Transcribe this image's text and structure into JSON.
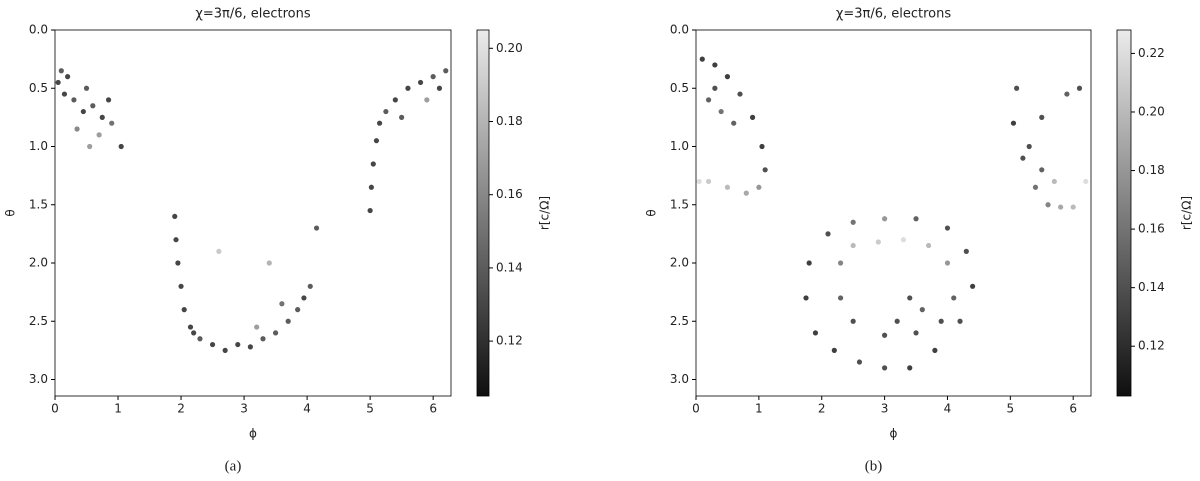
{
  "chart_data": [
    {
      "type": "scatter",
      "title": "χ=3π/6, electrons",
      "xlabel": "ϕ",
      "ylabel": "θ",
      "caption": "(a)",
      "cmap": "gray",
      "x": [
        0.05,
        0.15,
        0.3,
        0.45,
        0.6,
        0.75,
        0.9,
        0.2,
        0.5,
        0.7,
        0.35,
        0.85,
        0.1,
        0.55,
        1.05,
        1.9,
        1.92,
        1.95,
        2.0,
        2.05,
        2.15,
        2.3,
        2.5,
        2.7,
        2.9,
        3.1,
        3.3,
        3.5,
        3.7,
        3.85,
        3.95,
        4.05,
        3.6,
        3.2,
        2.6,
        2.2,
        4.15,
        3.4,
        5.0,
        5.02,
        5.05,
        5.1,
        5.15,
        5.25,
        5.4,
        5.6,
        5.8,
        6.0,
        6.2,
        5.5,
        5.9,
        6.1
      ],
      "y": [
        0.45,
        0.55,
        0.6,
        0.7,
        0.65,
        0.75,
        0.8,
        0.4,
        0.5,
        0.9,
        0.85,
        0.6,
        0.35,
        1.0,
        1.0,
        1.6,
        1.8,
        2.0,
        2.2,
        2.4,
        2.55,
        2.65,
        2.7,
        2.75,
        2.7,
        2.72,
        2.65,
        2.6,
        2.5,
        2.4,
        2.3,
        2.2,
        2.35,
        2.55,
        1.9,
        2.6,
        1.7,
        2.0,
        1.55,
        1.35,
        1.15,
        0.95,
        0.8,
        0.7,
        0.6,
        0.5,
        0.45,
        0.4,
        0.35,
        0.75,
        0.6,
        0.5
      ],
      "c": [
        0.13,
        0.13,
        0.14,
        0.13,
        0.14,
        0.13,
        0.15,
        0.13,
        0.14,
        0.17,
        0.16,
        0.13,
        0.14,
        0.17,
        0.13,
        0.13,
        0.13,
        0.13,
        0.13,
        0.13,
        0.13,
        0.14,
        0.13,
        0.13,
        0.13,
        0.13,
        0.14,
        0.14,
        0.14,
        0.14,
        0.13,
        0.14,
        0.15,
        0.17,
        0.19,
        0.13,
        0.14,
        0.18,
        0.13,
        0.13,
        0.13,
        0.13,
        0.13,
        0.14,
        0.13,
        0.13,
        0.13,
        0.14,
        0.14,
        0.14,
        0.17,
        0.13
      ],
      "xlim": [
        0,
        6.2832
      ],
      "ylim": [
        3.1416,
        0
      ],
      "xticks": [
        0,
        1,
        2,
        3,
        4,
        5,
        6
      ],
      "yticks": [
        {
          "value": 0,
          "label": "0.0"
        },
        0.5,
        {
          "value": 1,
          "label": "1.0"
        },
        1.5,
        {
          "value": 2,
          "label": "2.0"
        },
        2.5,
        {
          "value": 3,
          "label": "3.0"
        }
      ],
      "colorbar": {
        "label": "r[c/Ω]",
        "clim": [
          0.105,
          0.205
        ],
        "ticks": [
          0.12,
          0.14,
          0.16,
          0.18,
          {
            "value": 0.2,
            "label": "0.20"
          }
        ]
      }
    },
    {
      "type": "scatter",
      "title": "χ=3π/6, electrons",
      "xlabel": "ϕ",
      "ylabel": "θ",
      "caption": "(b)",
      "cmap": "gray",
      "x": [
        0.1,
        0.3,
        0.5,
        0.7,
        0.9,
        1.05,
        1.1,
        1.0,
        0.8,
        0.5,
        0.2,
        0.05,
        0.2,
        0.4,
        0.3,
        0.6,
        5.1,
        5.05,
        5.2,
        5.4,
        5.6,
        5.8,
        6.0,
        6.2,
        5.5,
        5.3,
        5.5,
        5.9,
        6.1,
        5.7,
        1.8,
        1.75,
        1.9,
        2.2,
        2.6,
        3.0,
        3.4,
        3.8,
        4.2,
        4.4,
        4.3,
        4.0,
        3.5,
        3.0,
        2.5,
        2.1,
        2.3,
        2.5,
        2.9,
        3.3,
        3.7,
        4.0,
        4.1,
        3.9,
        3.5,
        3.0,
        2.5,
        2.3,
        3.4,
        3.6,
        3.2
      ],
      "y": [
        0.25,
        0.3,
        0.4,
        0.55,
        0.75,
        1.0,
        1.2,
        1.35,
        1.4,
        1.35,
        1.3,
        1.3,
        0.6,
        0.7,
        0.5,
        0.8,
        0.5,
        0.8,
        1.1,
        1.35,
        1.5,
        1.52,
        1.52,
        1.3,
        1.2,
        1.0,
        0.75,
        0.55,
        0.5,
        1.3,
        2.0,
        2.3,
        2.6,
        2.75,
        2.85,
        2.9,
        2.9,
        2.75,
        2.5,
        2.2,
        1.9,
        1.7,
        1.62,
        1.62,
        1.65,
        1.75,
        2.0,
        1.85,
        1.82,
        1.8,
        1.85,
        2.0,
        2.3,
        2.5,
        2.6,
        2.62,
        2.5,
        2.3,
        2.3,
        2.4,
        2.5
      ],
      "c": [
        0.13,
        0.13,
        0.13,
        0.14,
        0.13,
        0.13,
        0.14,
        0.18,
        0.19,
        0.2,
        0.21,
        0.22,
        0.15,
        0.16,
        0.14,
        0.15,
        0.14,
        0.13,
        0.14,
        0.16,
        0.17,
        0.19,
        0.2,
        0.22,
        0.15,
        0.14,
        0.14,
        0.15,
        0.14,
        0.2,
        0.13,
        0.13,
        0.13,
        0.13,
        0.14,
        0.14,
        0.13,
        0.13,
        0.14,
        0.13,
        0.14,
        0.14,
        0.15,
        0.18,
        0.16,
        0.14,
        0.17,
        0.2,
        0.21,
        0.22,
        0.2,
        0.18,
        0.15,
        0.14,
        0.14,
        0.14,
        0.14,
        0.15,
        0.14,
        0.15,
        0.14
      ],
      "xlim": [
        0,
        6.2832
      ],
      "ylim": [
        3.1416,
        0
      ],
      "xticks": [
        0,
        1,
        2,
        3,
        4,
        5,
        6
      ],
      "yticks": [
        {
          "value": 0,
          "label": "0.0"
        },
        0.5,
        {
          "value": 1,
          "label": "1.0"
        },
        1.5,
        {
          "value": 2,
          "label": "2.0"
        },
        2.5,
        {
          "value": 3,
          "label": "3.0"
        }
      ],
      "colorbar": {
        "label": "r[c/Ω]",
        "clim": [
          0.103,
          0.228
        ],
        "ticks": [
          0.12,
          0.14,
          0.16,
          0.18,
          {
            "value": 0.2,
            "label": "0.20"
          },
          0.22
        ]
      }
    }
  ]
}
